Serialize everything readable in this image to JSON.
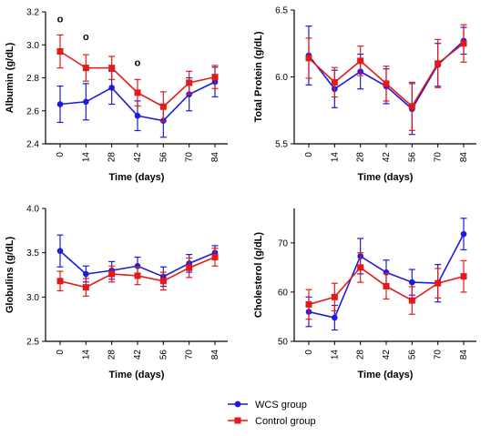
{
  "legend": {
    "wcs_label": "WCS group",
    "control_label": "Control group"
  },
  "colors": {
    "wcs": "#1c1cd9",
    "control": "#e61919",
    "axis": "#000000"
  },
  "chart_data": [
    {
      "type": "line",
      "ylabel": "Albumin (g/dL)",
      "xlabel": "Time (days)",
      "categories": [
        "0",
        "14",
        "28",
        "42",
        "56",
        "70",
        "84"
      ],
      "ylim": [
        2.4,
        3.2
      ],
      "yticks": [
        "2.4",
        "2.6",
        "2.8",
        "3.0",
        "3.2"
      ],
      "series": [
        {
          "name": "WCS group",
          "values": [
            2.64,
            2.655,
            2.74,
            2.57,
            2.54,
            2.7,
            2.775
          ],
          "err": [
            0.11,
            0.11,
            0.1,
            0.09,
            0.1,
            0.1,
            0.09
          ]
        },
        {
          "name": "Control group",
          "values": [
            2.96,
            2.86,
            2.86,
            2.71,
            2.625,
            2.77,
            2.805
          ],
          "err": [
            0.1,
            0.08,
            0.07,
            0.08,
            0.09,
            0.07,
            0.07
          ]
        }
      ],
      "annotations": [
        {
          "x": "0",
          "y": 3.16,
          "text": "o"
        },
        {
          "x": "14",
          "y": 3.05,
          "text": "o"
        },
        {
          "x": "42",
          "y": 2.895,
          "text": "o"
        }
      ]
    },
    {
      "type": "line",
      "ylabel": "Total Protein (g/dL)",
      "xlabel": "Time (days)",
      "categories": [
        "0",
        "14",
        "28",
        "42",
        "56",
        "70",
        "84"
      ],
      "ylim": [
        5.5,
        6.5
      ],
      "yticks": [
        "5.5",
        "6.0",
        "6.5"
      ],
      "series": [
        {
          "name": "WCS group",
          "values": [
            6.16,
            5.91,
            6.04,
            5.93,
            5.76,
            6.09,
            6.27
          ],
          "err": [
            0.22,
            0.14,
            0.13,
            0.13,
            0.19,
            0.16,
            0.1
          ]
        },
        {
          "name": "Control group",
          "values": [
            6.14,
            5.96,
            6.12,
            5.95,
            5.78,
            6.1,
            6.25
          ],
          "err": [
            0.15,
            0.11,
            0.11,
            0.13,
            0.18,
            0.18,
            0.14
          ]
        }
      ]
    },
    {
      "type": "line",
      "ylabel": "Globulins (g/dL)",
      "xlabel": "Time (days)",
      "categories": [
        "0",
        "14",
        "28",
        "42",
        "56",
        "70",
        "84"
      ],
      "ylim": [
        2.5,
        4.0
      ],
      "yticks": [
        "2.5",
        "3.0",
        "3.5",
        "4.0"
      ],
      "series": [
        {
          "name": "WCS group",
          "values": [
            3.52,
            3.26,
            3.3,
            3.35,
            3.23,
            3.38,
            3.5
          ],
          "err": [
            0.18,
            0.09,
            0.1,
            0.1,
            0.11,
            0.1,
            0.08
          ]
        },
        {
          "name": "Control group",
          "values": [
            3.18,
            3.11,
            3.26,
            3.24,
            3.18,
            3.33,
            3.45
          ],
          "err": [
            0.11,
            0.1,
            0.09,
            0.1,
            0.1,
            0.11,
            0.1
          ]
        }
      ]
    },
    {
      "type": "line",
      "ylabel": "Cholesterol (g/dL)",
      "xlabel": "Time (days)",
      "categories": [
        "0",
        "14",
        "28",
        "42",
        "56",
        "70",
        "84"
      ],
      "ylim": [
        50,
        77
      ],
      "yticks": [
        "50",
        "60",
        "70"
      ],
      "series": [
        {
          "name": "WCS group",
          "values": [
            56.0,
            54.8,
            67.3,
            64.0,
            62.0,
            61.8,
            71.8
          ],
          "err": [
            3.0,
            2.5,
            3.6,
            2.5,
            2.6,
            3.8,
            3.2
          ]
        },
        {
          "name": "Control group",
          "values": [
            57.5,
            59.0,
            65.0,
            61.2,
            58.3,
            61.8,
            63.2
          ],
          "err": [
            3.0,
            2.8,
            3.0,
            2.6,
            2.8,
            3.0,
            3.2
          ]
        }
      ]
    }
  ]
}
